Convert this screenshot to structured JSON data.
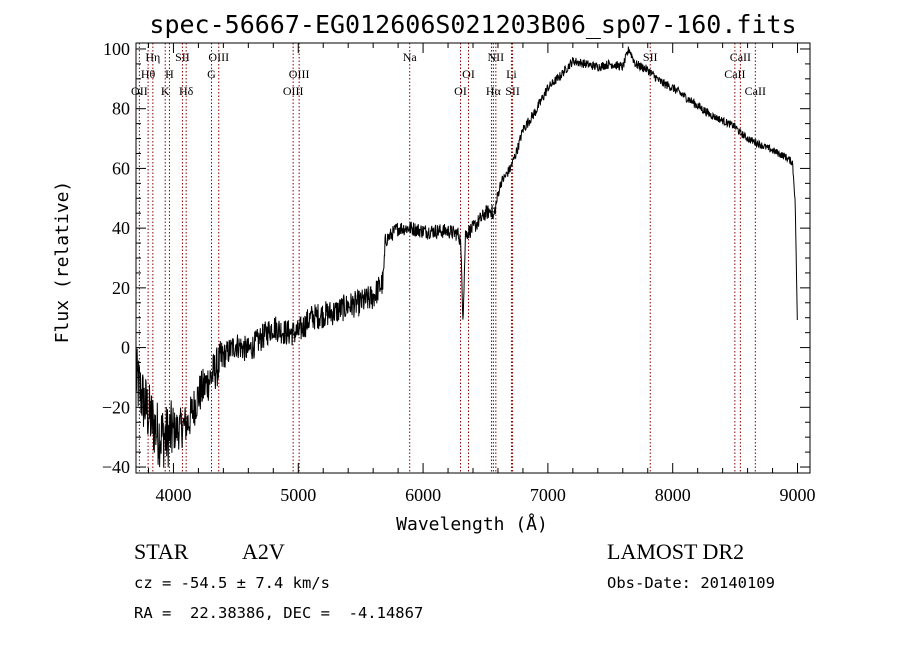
{
  "chart_data": {
    "type": "line",
    "title": "spec-56667-EG012606S021203B06_sp07-160.fits",
    "xlabel": "Wavelength (Å)",
    "ylabel": "Flux (relative)",
    "xlim": [
      3700,
      9100
    ],
    "ylim": [
      -42,
      102
    ],
    "x_ticks": [
      4000,
      5000,
      6000,
      7000,
      8000,
      9000
    ],
    "y_ticks": [
      -40,
      -20,
      0,
      20,
      40,
      60,
      80,
      100
    ],
    "series": [
      {
        "x": [
          3700,
          3760,
          3820,
          3880,
          3940,
          4000,
          4060,
          4120,
          4200,
          4300,
          4400,
          4500,
          4600,
          4700,
          4800,
          4900,
          5000,
          5100,
          5200,
          5300,
          5400,
          5500,
          5600,
          5680,
          5700,
          5750,
          5800,
          5900,
          6000,
          6100,
          6200,
          6280,
          6300,
          6320,
          6340,
          6400,
          6500,
          6550,
          6563,
          6580,
          6620,
          6700,
          6760,
          6800,
          6900,
          7000,
          7100,
          7200,
          7300,
          7400,
          7500,
          7600,
          7650,
          7700,
          7800,
          7900,
          8000,
          8100,
          8200,
          8300,
          8400,
          8500,
          8540,
          8600,
          8700,
          8800,
          8900,
          8960,
          8980,
          8990,
          9000
        ],
        "y": [
          -10,
          -18,
          -24,
          -29,
          -30,
          -28,
          -27,
          -25,
          -16,
          -10,
          -3,
          1,
          -1,
          3,
          7,
          5,
          5,
          10,
          11,
          12,
          14,
          15,
          17,
          22,
          36,
          38,
          40,
          40,
          39,
          39,
          39,
          38,
          36,
          10,
          38,
          40,
          45,
          46,
          43,
          47,
          55,
          60,
          67,
          73,
          79,
          87,
          91,
          96,
          95,
          94,
          95,
          94,
          100,
          95,
          93,
          89,
          87,
          84,
          81,
          78,
          76,
          74,
          72,
          70,
          68,
          66,
          64,
          62,
          50,
          30,
          3
        ]
      }
    ],
    "line_labels": [
      {
        "label": "Hη",
        "x": 3835,
        "row": 1
      },
      {
        "label": "Hθ",
        "x": 3797,
        "row": 2
      },
      {
        "label": "OII",
        "x": 3727,
        "row": 3
      },
      {
        "label": "SII",
        "x": 4072,
        "row": 1
      },
      {
        "label": "H",
        "x": 3968,
        "row": 2
      },
      {
        "label": "K",
        "x": 3934,
        "row": 3
      },
      {
        "label": "Hδ",
        "x": 4102,
        "row": 3
      },
      {
        "label": "OIII",
        "x": 4363,
        "row": 1
      },
      {
        "label": "G",
        "x": 4305,
        "row": 2
      },
      {
        "label": "OIII",
        "x": 5007,
        "row": 2
      },
      {
        "label": "OIII",
        "x": 4959,
        "row": 3
      },
      {
        "label": "Na",
        "x": 5893,
        "row": 1
      },
      {
        "label": "NII",
        "x": 6583,
        "row": 1
      },
      {
        "label": "OI",
        "x": 6364,
        "row": 2
      },
      {
        "label": "OI",
        "x": 6300,
        "row": 3
      },
      {
        "label": "Hα",
        "x": 6563,
        "row": 3
      },
      {
        "label": "Li",
        "x": 6708,
        "row": 2
      },
      {
        "label": "SII",
        "x": 6717,
        "row": 3
      },
      {
        "label": "SII",
        "x": 7820,
        "row": 1
      },
      {
        "label": "CaII",
        "x": 8542,
        "row": 1
      },
      {
        "label": "CaII",
        "x": 8498,
        "row": 2
      },
      {
        "label": "CaII",
        "x": 8662,
        "row": 3
      }
    ],
    "line_positions": [
      3727,
      3797,
      3835,
      3934,
      3968,
      4072,
      4102,
      4305,
      4363,
      4959,
      5007,
      5893,
      6300,
      6364,
      6548,
      6563,
      6583,
      6708,
      6717,
      7820,
      8498,
      8542,
      8662
    ],
    "grid": false,
    "legend": "none"
  },
  "info": {
    "object_class": "STAR",
    "subclass": "A2V",
    "survey": "LAMOST DR2",
    "cz": "cz = -54.5 ± 7.4 km/s",
    "obs_date": "Obs-Date: 20140109",
    "coords": "RA =  22.38386, DEC =  -4.14867"
  },
  "colors": {
    "line_markers": "#8b0000",
    "spectrum": "#000000"
  }
}
